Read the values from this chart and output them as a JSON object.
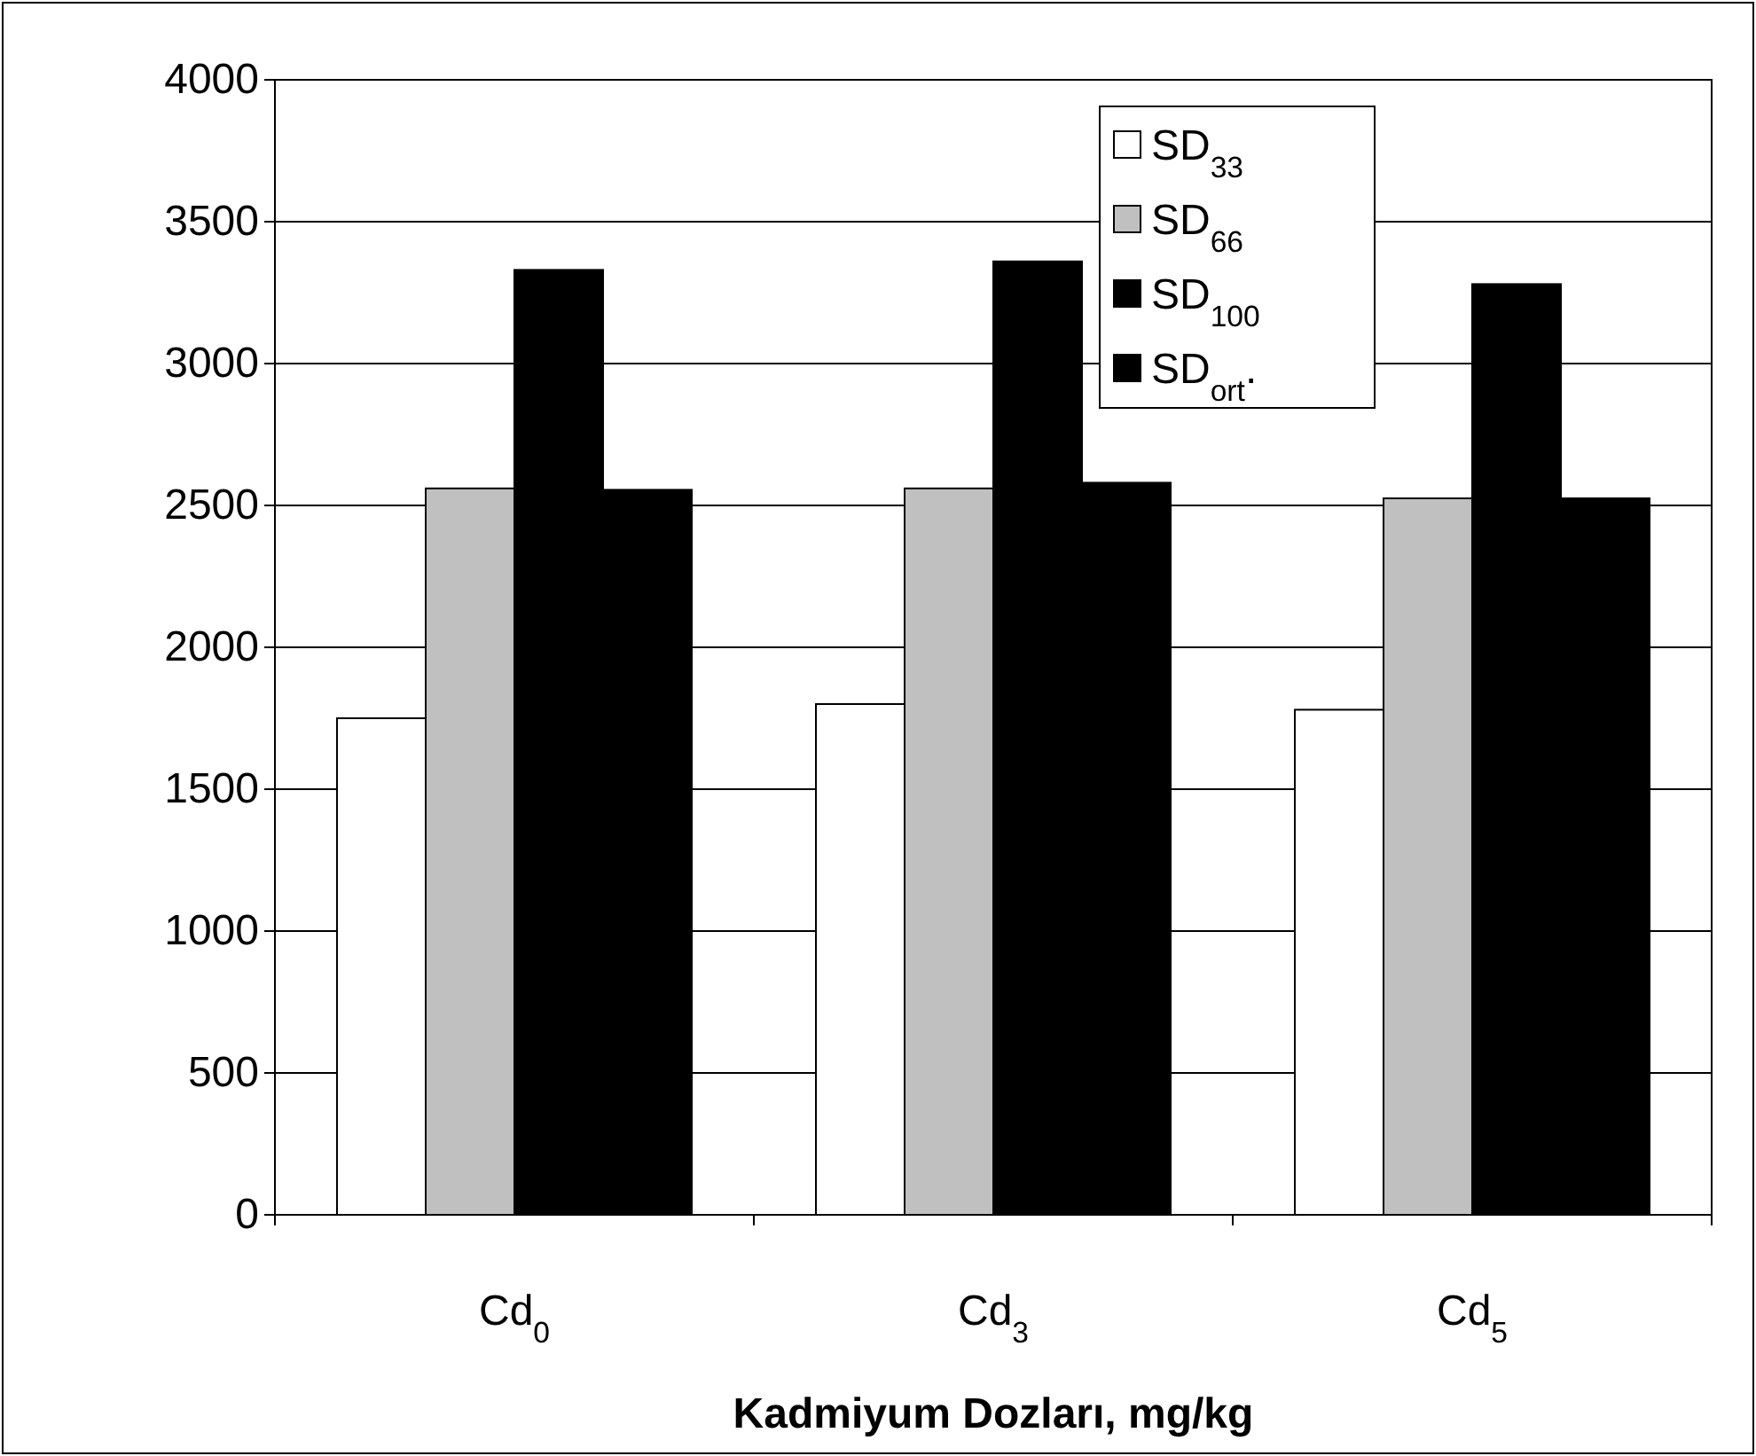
{
  "chart_data": {
    "type": "bar",
    "xlabel": "Kadmiyum Dozları, mg/kg",
    "categories": [
      "Cd$_{0}$",
      "Cd$_{3}$",
      "Cd$_{5}$"
    ],
    "series": [
      {
        "name": "SD$_{33}$",
        "color": "#ffffff",
        "values": [
          1750,
          1800,
          1780
        ]
      },
      {
        "name": "SD$_{66}$",
        "color": "#c0c0c0",
        "values": [
          2560,
          2560,
          2525
        ]
      },
      {
        "name": "SD$_{100}$",
        "color": "#000000",
        "values": [
          3330,
          3360,
          3280
        ]
      },
      {
        "name": "SD$_{ort}$.",
        "color": "#000000",
        "values": [
          2555,
          2580,
          2525
        ]
      }
    ],
    "ylim": [
      0,
      4000
    ],
    "yticks": [
      0,
      500,
      1000,
      1500,
      2000,
      2500,
      3000,
      3500,
      4000
    ],
    "grid": "y",
    "legend": "top right"
  }
}
